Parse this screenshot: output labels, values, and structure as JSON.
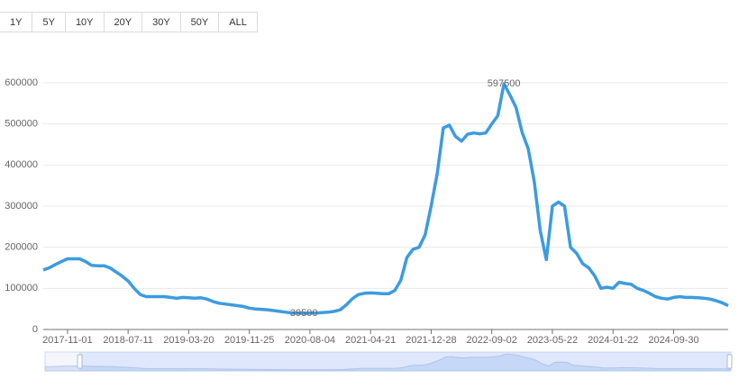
{
  "toolbar": {
    "buttons": [
      "1Y",
      "5Y",
      "10Y",
      "20Y",
      "30Y",
      "50Y",
      "ALL"
    ]
  },
  "chart_data": {
    "type": "line",
    "categories": [
      null,
      null,
      null,
      null,
      "2017-11-01",
      null,
      null,
      null,
      null,
      null,
      null,
      null,
      null,
      null,
      "2018-07-11",
      null,
      null,
      null,
      null,
      null,
      null,
      null,
      null,
      null,
      "2019-03-20",
      null,
      null,
      null,
      null,
      null,
      null,
      null,
      null,
      null,
      "2019-11-25",
      null,
      null,
      null,
      null,
      null,
      null,
      null,
      null,
      null,
      "2020-08-04",
      null,
      null,
      null,
      null,
      null,
      null,
      null,
      null,
      null,
      "2021-04-21",
      null,
      null,
      null,
      null,
      null,
      null,
      null,
      null,
      null,
      "2021-12-28",
      null,
      null,
      null,
      null,
      null,
      null,
      null,
      null,
      null,
      "2022-09-02",
      null,
      null,
      null,
      null,
      null,
      null,
      null,
      null,
      null,
      "2023-05-22",
      null,
      null,
      null,
      null,
      null,
      null,
      null,
      null,
      null,
      "2024-01-22",
      null,
      null,
      null,
      null,
      null,
      null,
      null,
      null,
      null,
      "2024-09-30",
      null,
      null,
      null,
      null,
      null,
      null,
      null,
      null,
      null
    ],
    "values": [
      145000,
      150000,
      158000,
      165000,
      172000,
      172000,
      172000,
      165000,
      156000,
      155000,
      155000,
      150000,
      140000,
      130000,
      118000,
      100000,
      85000,
      80000,
      80000,
      80000,
      80000,
      78000,
      76000,
      78000,
      77000,
      76000,
      77000,
      74000,
      68000,
      64000,
      62000,
      60000,
      58000,
      56000,
      52000,
      50000,
      49000,
      48000,
      46000,
      44000,
      42000,
      40000,
      40000,
      39500,
      40000,
      40000,
      41000,
      42000,
      44000,
      48000,
      60000,
      75000,
      85000,
      88000,
      89000,
      88000,
      87000,
      87000,
      95000,
      120000,
      175000,
      195000,
      200000,
      230000,
      300000,
      380000,
      490000,
      497000,
      470000,
      458000,
      475000,
      478000,
      476000,
      478000,
      500000,
      520000,
      597500,
      570000,
      540000,
      480000,
      440000,
      360000,
      240000,
      170000,
      300000,
      310000,
      300000,
      200000,
      185000,
      160000,
      150000,
      130000,
      100000,
      103000,
      100000,
      115000,
      112000,
      110000,
      100000,
      95000,
      88000,
      80000,
      76000,
      74000,
      78000,
      80000,
      78000,
      78000,
      77000,
      76000,
      74000,
      70000,
      65000,
      58000
    ],
    "color": "#3d9be0",
    "ylim": [
      0,
      600000
    ],
    "yticks": [
      0,
      100000,
      200000,
      300000,
      400000,
      500000,
      600000
    ],
    "grid": true,
    "max_label": true,
    "min_label": true,
    "zoom_slider": true
  }
}
